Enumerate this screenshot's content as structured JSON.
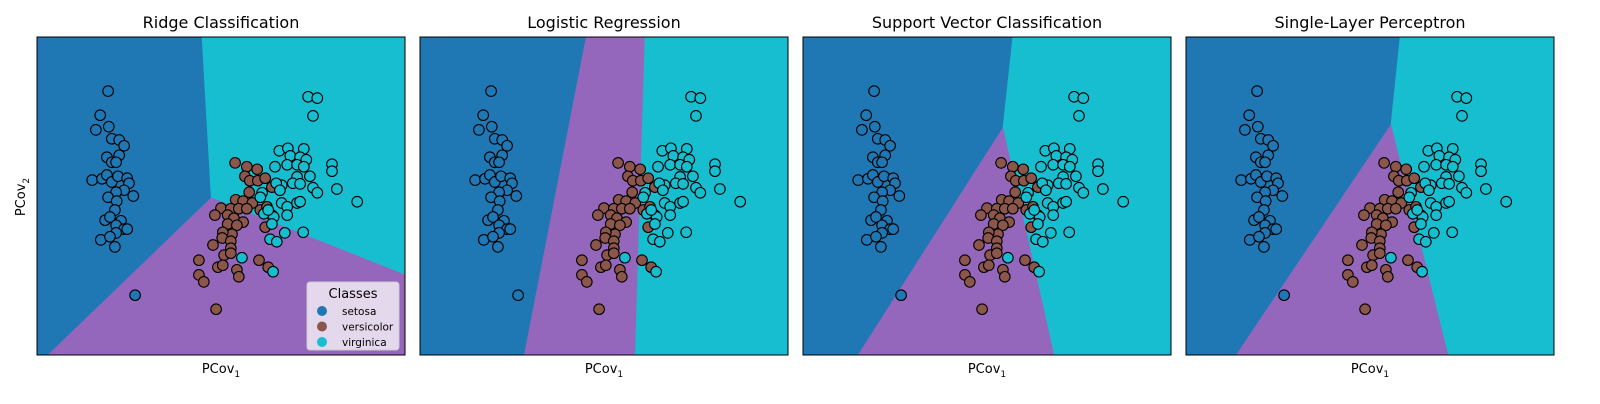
{
  "chart_data": {
    "type": "scatter",
    "ylabel": "PCov",
    "ylabel_sub": "2",
    "xlim": [
      -3,
      3
    ],
    "ylim": [
      -2.5,
      2.5
    ],
    "grid": false,
    "class_colors": {
      "setosa": "#1f77b4",
      "versicolor": "#8c564b",
      "virginica": "#17becf"
    },
    "region_colors": {
      "setosa": "#1f77b4",
      "versicolor": "#9467bd",
      "virginica": "#17becf"
    },
    "legend": {
      "title": "Classes",
      "placement": "lower-right of first panel",
      "entries": [
        "setosa",
        "versicolor",
        "virginica"
      ]
    },
    "points": {
      "setosa": [
        [
          -1.84,
          1.65
        ],
        [
          -1.97,
          1.27
        ],
        [
          -2.04,
          1.04
        ],
        [
          -1.83,
          1.09
        ],
        [
          -1.78,
          0.9
        ],
        [
          -1.66,
          0.88
        ],
        [
          -1.58,
          0.79
        ],
        [
          -1.86,
          0.61
        ],
        [
          -1.66,
          0.64
        ],
        [
          -1.78,
          0.53
        ],
        [
          -1.71,
          0.53
        ],
        [
          -2.1,
          0.25
        ],
        [
          -1.94,
          0.27
        ],
        [
          -1.86,
          0.33
        ],
        [
          -1.78,
          0.22
        ],
        [
          -1.68,
          0.31
        ],
        [
          -1.53,
          0.28
        ],
        [
          -1.5,
          0.2
        ],
        [
          -1.58,
          0.09
        ],
        [
          -1.71,
          0.06
        ],
        [
          -1.84,
          -0.02
        ],
        [
          -1.7,
          -0.08
        ],
        [
          -1.43,
          0.0
        ],
        [
          -1.73,
          -0.22
        ],
        [
          -1.89,
          -0.38
        ],
        [
          -1.81,
          -0.33
        ],
        [
          -1.63,
          -0.39
        ],
        [
          -1.71,
          -0.46
        ],
        [
          -1.58,
          -0.52
        ],
        [
          -1.53,
          -0.52
        ],
        [
          -1.71,
          -0.58
        ],
        [
          -1.96,
          -0.69
        ],
        [
          -1.81,
          -0.64
        ],
        [
          -1.73,
          -0.8
        ],
        [
          -1.4,
          -1.56
        ]
      ],
      "versicolor": [
        [
          0.23,
          0.52
        ],
        [
          0.42,
          0.46
        ],
        [
          0.59,
          0.42
        ],
        [
          0.39,
          0.31
        ],
        [
          0.47,
          0.24
        ],
        [
          0.6,
          0.24
        ],
        [
          0.72,
          0.28
        ],
        [
          0.83,
          0.14
        ],
        [
          0.46,
          0.06
        ],
        [
          0.24,
          -0.06
        ],
        [
          0.36,
          -0.08
        ],
        [
          0.51,
          -0.11
        ],
        [
          0.0,
          -0.19
        ],
        [
          0.16,
          -0.2
        ],
        [
          0.29,
          -0.2
        ],
        [
          0.42,
          -0.2
        ],
        [
          -0.1,
          -0.3
        ],
        [
          0.11,
          -0.3
        ],
        [
          0.21,
          -0.35
        ],
        [
          0.36,
          -0.41
        ],
        [
          0.11,
          -0.44
        ],
        [
          0.26,
          -0.46
        ],
        [
          0.18,
          -0.6
        ],
        [
          0.03,
          -0.57
        ],
        [
          0.02,
          -0.66
        ],
        [
          0.16,
          -0.71
        ],
        [
          -0.13,
          -0.77
        ],
        [
          0.16,
          -0.82
        ],
        [
          0.05,
          -0.93
        ],
        [
          0.16,
          -0.9
        ],
        [
          -0.36,
          -1.01
        ],
        [
          -0.05,
          -1.12
        ],
        [
          0.03,
          -1.09
        ],
        [
          0.26,
          -1.16
        ],
        [
          0.29,
          -1.27
        ],
        [
          -0.36,
          -1.24
        ],
        [
          -0.28,
          -1.35
        ],
        [
          -0.08,
          -1.78
        ],
        [
          0.62,
          -1.01
        ],
        [
          0.77,
          -1.12
        ],
        [
          0.72,
          -0.49
        ],
        [
          0.64,
          -0.22
        ],
        [
          0.75,
          -0.17
        ],
        [
          0.83,
          -0.3
        ]
      ],
      "virginica": [
        [
          1.42,
          1.56
        ],
        [
          1.57,
          1.54
        ],
        [
          1.5,
          1.26
        ],
        [
          0.95,
          0.71
        ],
        [
          1.09,
          0.75
        ],
        [
          1.35,
          0.74
        ],
        [
          1.13,
          0.63
        ],
        [
          1.29,
          0.61
        ],
        [
          1.39,
          0.57
        ],
        [
          0.88,
          0.46
        ],
        [
          1.08,
          0.49
        ],
        [
          1.24,
          0.49
        ],
        [
          1.35,
          0.46
        ],
        [
          1.45,
          0.31
        ],
        [
          1.81,
          0.5
        ],
        [
          1.81,
          0.39
        ],
        [
          1.24,
          0.3
        ],
        [
          1.17,
          0.2
        ],
        [
          1.29,
          0.19
        ],
        [
          0.99,
          0.17
        ],
        [
          0.9,
          0.2
        ],
        [
          1.5,
          0.13
        ],
        [
          1.57,
          0.05
        ],
        [
          1.89,
          0.11
        ],
        [
          2.22,
          -0.09
        ],
        [
          0.96,
          0.09
        ],
        [
          0.67,
          0.05
        ],
        [
          0.64,
          -0.02
        ],
        [
          0.99,
          -0.11
        ],
        [
          1.08,
          -0.17
        ],
        [
          1.24,
          -0.11
        ],
        [
          1.29,
          -0.09
        ],
        [
          1.08,
          -0.3
        ],
        [
          0.86,
          -0.33
        ],
        [
          0.7,
          -0.28
        ],
        [
          0.77,
          -0.22
        ],
        [
          0.83,
          -0.44
        ],
        [
          1.04,
          -0.58
        ],
        [
          1.34,
          -0.57
        ],
        [
          0.8,
          -0.68
        ],
        [
          0.91,
          -0.72
        ],
        [
          0.34,
          -0.97
        ],
        [
          0.85,
          -1.19
        ]
      ]
    },
    "panels": [
      {
        "title": "Ridge Classification",
        "xlabel": "PCov",
        "xlabel_sub": "1",
        "regions": {
          "setosa": [
            [
              -3,
              2.5
            ],
            [
              -0.31,
              2.5
            ],
            [
              -0.16,
              -0.03
            ],
            [
              -2.82,
              -2.5
            ],
            [
              -3,
              -2.5
            ]
          ],
          "virginica": [
            [
              -0.31,
              2.5
            ],
            [
              3,
              2.5
            ],
            [
              3,
              -1.24
            ],
            [
              -0.16,
              -0.03
            ]
          ],
          "versicolor": [
            [
              -0.16,
              -0.03
            ],
            [
              3,
              -1.24
            ],
            [
              3,
              -2.5
            ],
            [
              -2.82,
              -2.5
            ]
          ]
        }
      },
      {
        "title": "Logistic Regression",
        "xlabel": "PCov",
        "xlabel_sub": "1",
        "regions": {
          "setosa": [
            [
              -3,
              2.5
            ],
            [
              -0.29,
              2.5
            ],
            [
              -1.3,
              -2.5
            ],
            [
              -3,
              -2.5
            ]
          ],
          "versicolor": [
            [
              -0.29,
              2.5
            ],
            [
              0.67,
              2.5
            ],
            [
              0.51,
              -2.5
            ],
            [
              -1.3,
              -2.5
            ]
          ],
          "virginica": [
            [
              0.67,
              2.5
            ],
            [
              3,
              2.5
            ],
            [
              3,
              -2.5
            ],
            [
              0.51,
              -2.5
            ]
          ]
        }
      },
      {
        "title": "Support Vector Classification",
        "xlabel": "PCov",
        "xlabel_sub": "1",
        "regions": {
          "setosa": [
            [
              -3,
              2.5
            ],
            [
              0.42,
              2.5
            ],
            [
              0.26,
              1.07
            ],
            [
              -2.1,
              -2.5
            ],
            [
              -3,
              -2.5
            ]
          ],
          "virginica": [
            [
              0.42,
              2.5
            ],
            [
              3,
              2.5
            ],
            [
              3,
              -2.5
            ],
            [
              1.09,
              -2.5
            ],
            [
              0.26,
              1.07
            ]
          ],
          "versicolor": [
            [
              0.26,
              1.07
            ],
            [
              1.09,
              -2.5
            ],
            [
              -2.1,
              -2.5
            ]
          ]
        }
      },
      {
        "title": "Single-Layer Perceptron",
        "xlabel": "PCov",
        "xlabel_sub": "1",
        "regions": {
          "setosa": [
            [
              -3,
              2.5
            ],
            [
              0.49,
              2.5
            ],
            [
              0.34,
              1.12
            ],
            [
              -2.18,
              -2.5
            ],
            [
              -3,
              -2.5
            ]
          ],
          "virginica": [
            [
              0.49,
              2.5
            ],
            [
              3,
              2.5
            ],
            [
              3,
              -2.5
            ],
            [
              1.27,
              -2.5
            ],
            [
              0.34,
              1.12
            ]
          ],
          "versicolor": [
            [
              0.34,
              1.12
            ],
            [
              1.27,
              -2.5
            ],
            [
              -2.18,
              -2.5
            ]
          ]
        }
      }
    ]
  }
}
